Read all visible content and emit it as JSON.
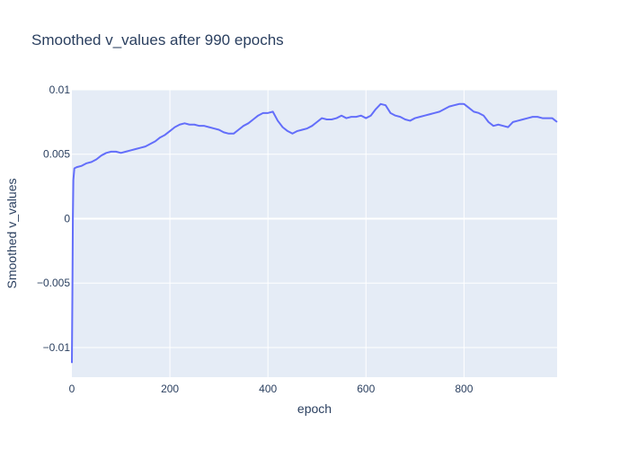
{
  "chart_data": {
    "type": "line",
    "title": "Smoothed v_values after 990 epochs",
    "xlabel": "epoch",
    "ylabel": "Smoothed v_values",
    "xlim": [
      0,
      990
    ],
    "ylim": [
      -0.0123,
      0.01
    ],
    "x_ticks": [
      0,
      200,
      400,
      600,
      800
    ],
    "x_tick_labels": [
      "0",
      "200",
      "400",
      "600",
      "800"
    ],
    "y_ticks": [
      -0.01,
      -0.005,
      0,
      0.005,
      0.01
    ],
    "y_tick_labels": [
      "−0.01",
      "−0.005",
      "0",
      "0.005",
      "0.01"
    ],
    "grid": true,
    "colors": {
      "line": "#636efa",
      "plot_bg": "#e5ecf6",
      "grid": "#ffffff",
      "text": "#2a3f5f"
    },
    "series": [
      {
        "x": [
          0,
          1,
          2,
          3,
          5,
          10,
          20,
          30,
          40,
          50,
          60,
          70,
          80,
          90,
          100,
          110,
          120,
          130,
          140,
          150,
          160,
          170,
          180,
          190,
          200,
          210,
          220,
          230,
          240,
          250,
          260,
          270,
          280,
          290,
          300,
          310,
          320,
          330,
          340,
          350,
          360,
          370,
          380,
          390,
          400,
          410,
          420,
          430,
          440,
          450,
          460,
          470,
          480,
          490,
          500,
          510,
          520,
          530,
          540,
          550,
          560,
          570,
          580,
          590,
          600,
          610,
          620,
          630,
          640,
          650,
          660,
          670,
          680,
          690,
          700,
          710,
          720,
          730,
          740,
          750,
          760,
          770,
          780,
          790,
          800,
          810,
          820,
          830,
          840,
          850,
          860,
          870,
          880,
          890,
          900,
          910,
          920,
          930,
          940,
          950,
          960,
          970,
          980,
          990
        ],
        "y": [
          -0.0112,
          -0.006,
          0.0,
          0.003,
          0.0039,
          0.004,
          0.0041,
          0.0043,
          0.0044,
          0.0046,
          0.0049,
          0.0051,
          0.0052,
          0.0052,
          0.0051,
          0.0052,
          0.0053,
          0.0054,
          0.0055,
          0.0056,
          0.0058,
          0.006,
          0.0063,
          0.0065,
          0.0068,
          0.0071,
          0.0073,
          0.0074,
          0.0073,
          0.0073,
          0.0072,
          0.0072,
          0.0071,
          0.007,
          0.0069,
          0.0067,
          0.0066,
          0.0066,
          0.0069,
          0.0072,
          0.0074,
          0.0077,
          0.008,
          0.0082,
          0.0082,
          0.0083,
          0.0076,
          0.0071,
          0.0068,
          0.0066,
          0.0068,
          0.0069,
          0.007,
          0.0072,
          0.0075,
          0.0078,
          0.0077,
          0.0077,
          0.0078,
          0.008,
          0.0078,
          0.0079,
          0.0079,
          0.008,
          0.0078,
          0.008,
          0.0085,
          0.0089,
          0.0088,
          0.0082,
          0.008,
          0.0079,
          0.0077,
          0.0076,
          0.0078,
          0.0079,
          0.008,
          0.0081,
          0.0082,
          0.0083,
          0.0085,
          0.0087,
          0.0088,
          0.0089,
          0.0089,
          0.0086,
          0.0083,
          0.0082,
          0.008,
          0.0075,
          0.0072,
          0.0073,
          0.0072,
          0.0071,
          0.0075,
          0.0076,
          0.0077,
          0.0078,
          0.0079,
          0.0079,
          0.0078,
          0.0078,
          0.0078,
          0.0075
        ]
      }
    ]
  }
}
